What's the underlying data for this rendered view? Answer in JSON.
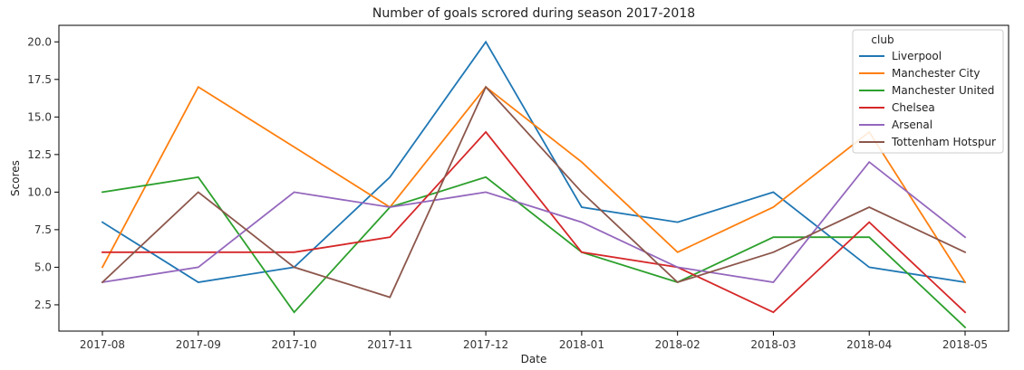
{
  "chart_data": {
    "type": "line",
    "title": "Number of goals scrored during season 2017-2018",
    "xlabel": "Date",
    "ylabel": "Scores",
    "x": [
      "2017-08",
      "2017-09",
      "2017-10",
      "2017-11",
      "2017-12",
      "2018-01",
      "2018-02",
      "2018-03",
      "2018-04",
      "2018-05"
    ],
    "ylim": [
      0.75,
      21.1
    ],
    "yticks": [
      "2.5",
      "5.0",
      "7.5",
      "10.0",
      "12.5",
      "15.0",
      "17.5",
      "20.0"
    ],
    "grid": false,
    "legend": {
      "title": "club",
      "placement": "top-right"
    },
    "series": [
      {
        "name": "Liverpool",
        "color": "#1f77b4",
        "values": [
          8,
          4,
          5,
          11,
          20,
          9,
          8,
          10,
          5,
          4
        ]
      },
      {
        "name": "Manchester City",
        "color": "#ff7f0e",
        "values": [
          5,
          17,
          13,
          9,
          17,
          12,
          6,
          9,
          14,
          4
        ]
      },
      {
        "name": "Manchester United",
        "color": "#2ca02c",
        "values": [
          10,
          11,
          2,
          9,
          11,
          6,
          4,
          7,
          7,
          1
        ]
      },
      {
        "name": "Chelsea",
        "color": "#d62728",
        "values": [
          6,
          6,
          6,
          7,
          14,
          6,
          5,
          2,
          8,
          2
        ]
      },
      {
        "name": "Arsenal",
        "color": "#9467bd",
        "values": [
          4,
          5,
          10,
          9,
          10,
          8,
          5,
          4,
          12,
          7
        ]
      },
      {
        "name": "Tottenham Hotspur",
        "color": "#8c564b",
        "values": [
          4,
          10,
          5,
          3,
          17,
          10,
          4,
          6,
          9,
          6
        ]
      }
    ]
  }
}
